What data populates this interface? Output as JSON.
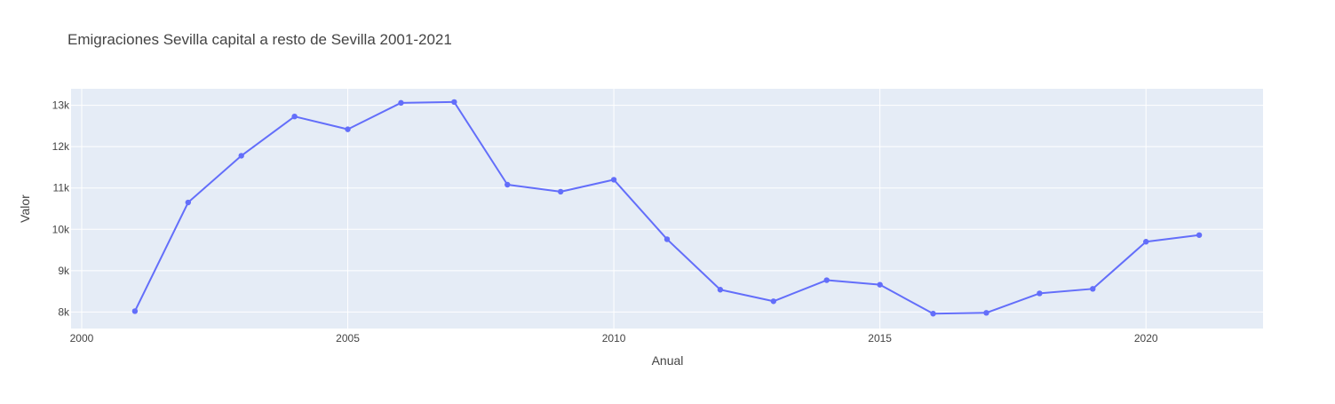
{
  "chart_data": {
    "type": "line",
    "title": "Emigraciones Sevilla capital a resto de Sevilla 2001-2021",
    "xlabel": "Anual",
    "ylabel": "Valor",
    "x": [
      2001,
      2002,
      2003,
      2004,
      2005,
      2006,
      2007,
      2008,
      2009,
      2010,
      2011,
      2012,
      2013,
      2014,
      2015,
      2016,
      2017,
      2018,
      2019,
      2020,
      2021
    ],
    "series": [
      {
        "values": [
          8020,
          10650,
          11780,
          12730,
          12420,
          13060,
          13080,
          11080,
          10910,
          11200,
          9760,
          8540,
          8260,
          8770,
          8660,
          7960,
          7980,
          8450,
          8560,
          9700,
          9860
        ],
        "color": "#636efa",
        "mode": "lines+markers"
      }
    ],
    "xlim": [
      1999.8,
      2022.2
    ],
    "ylim": [
      7600,
      13400
    ],
    "x_ticks": [
      2000,
      2005,
      2010,
      2015,
      2020
    ],
    "x_tick_labels": [
      "2000",
      "2005",
      "2010",
      "2015",
      "2020"
    ],
    "y_ticks": [
      8000,
      9000,
      10000,
      11000,
      12000,
      13000
    ],
    "y_tick_labels": [
      "8k",
      "9k",
      "10k",
      "11k",
      "12k",
      "13k"
    ],
    "grid": true,
    "legend": "none"
  },
  "colors": {
    "plot_background": "#e5ecf6",
    "grid": "#ffffff",
    "text": "#444444",
    "title": "#444444"
  }
}
